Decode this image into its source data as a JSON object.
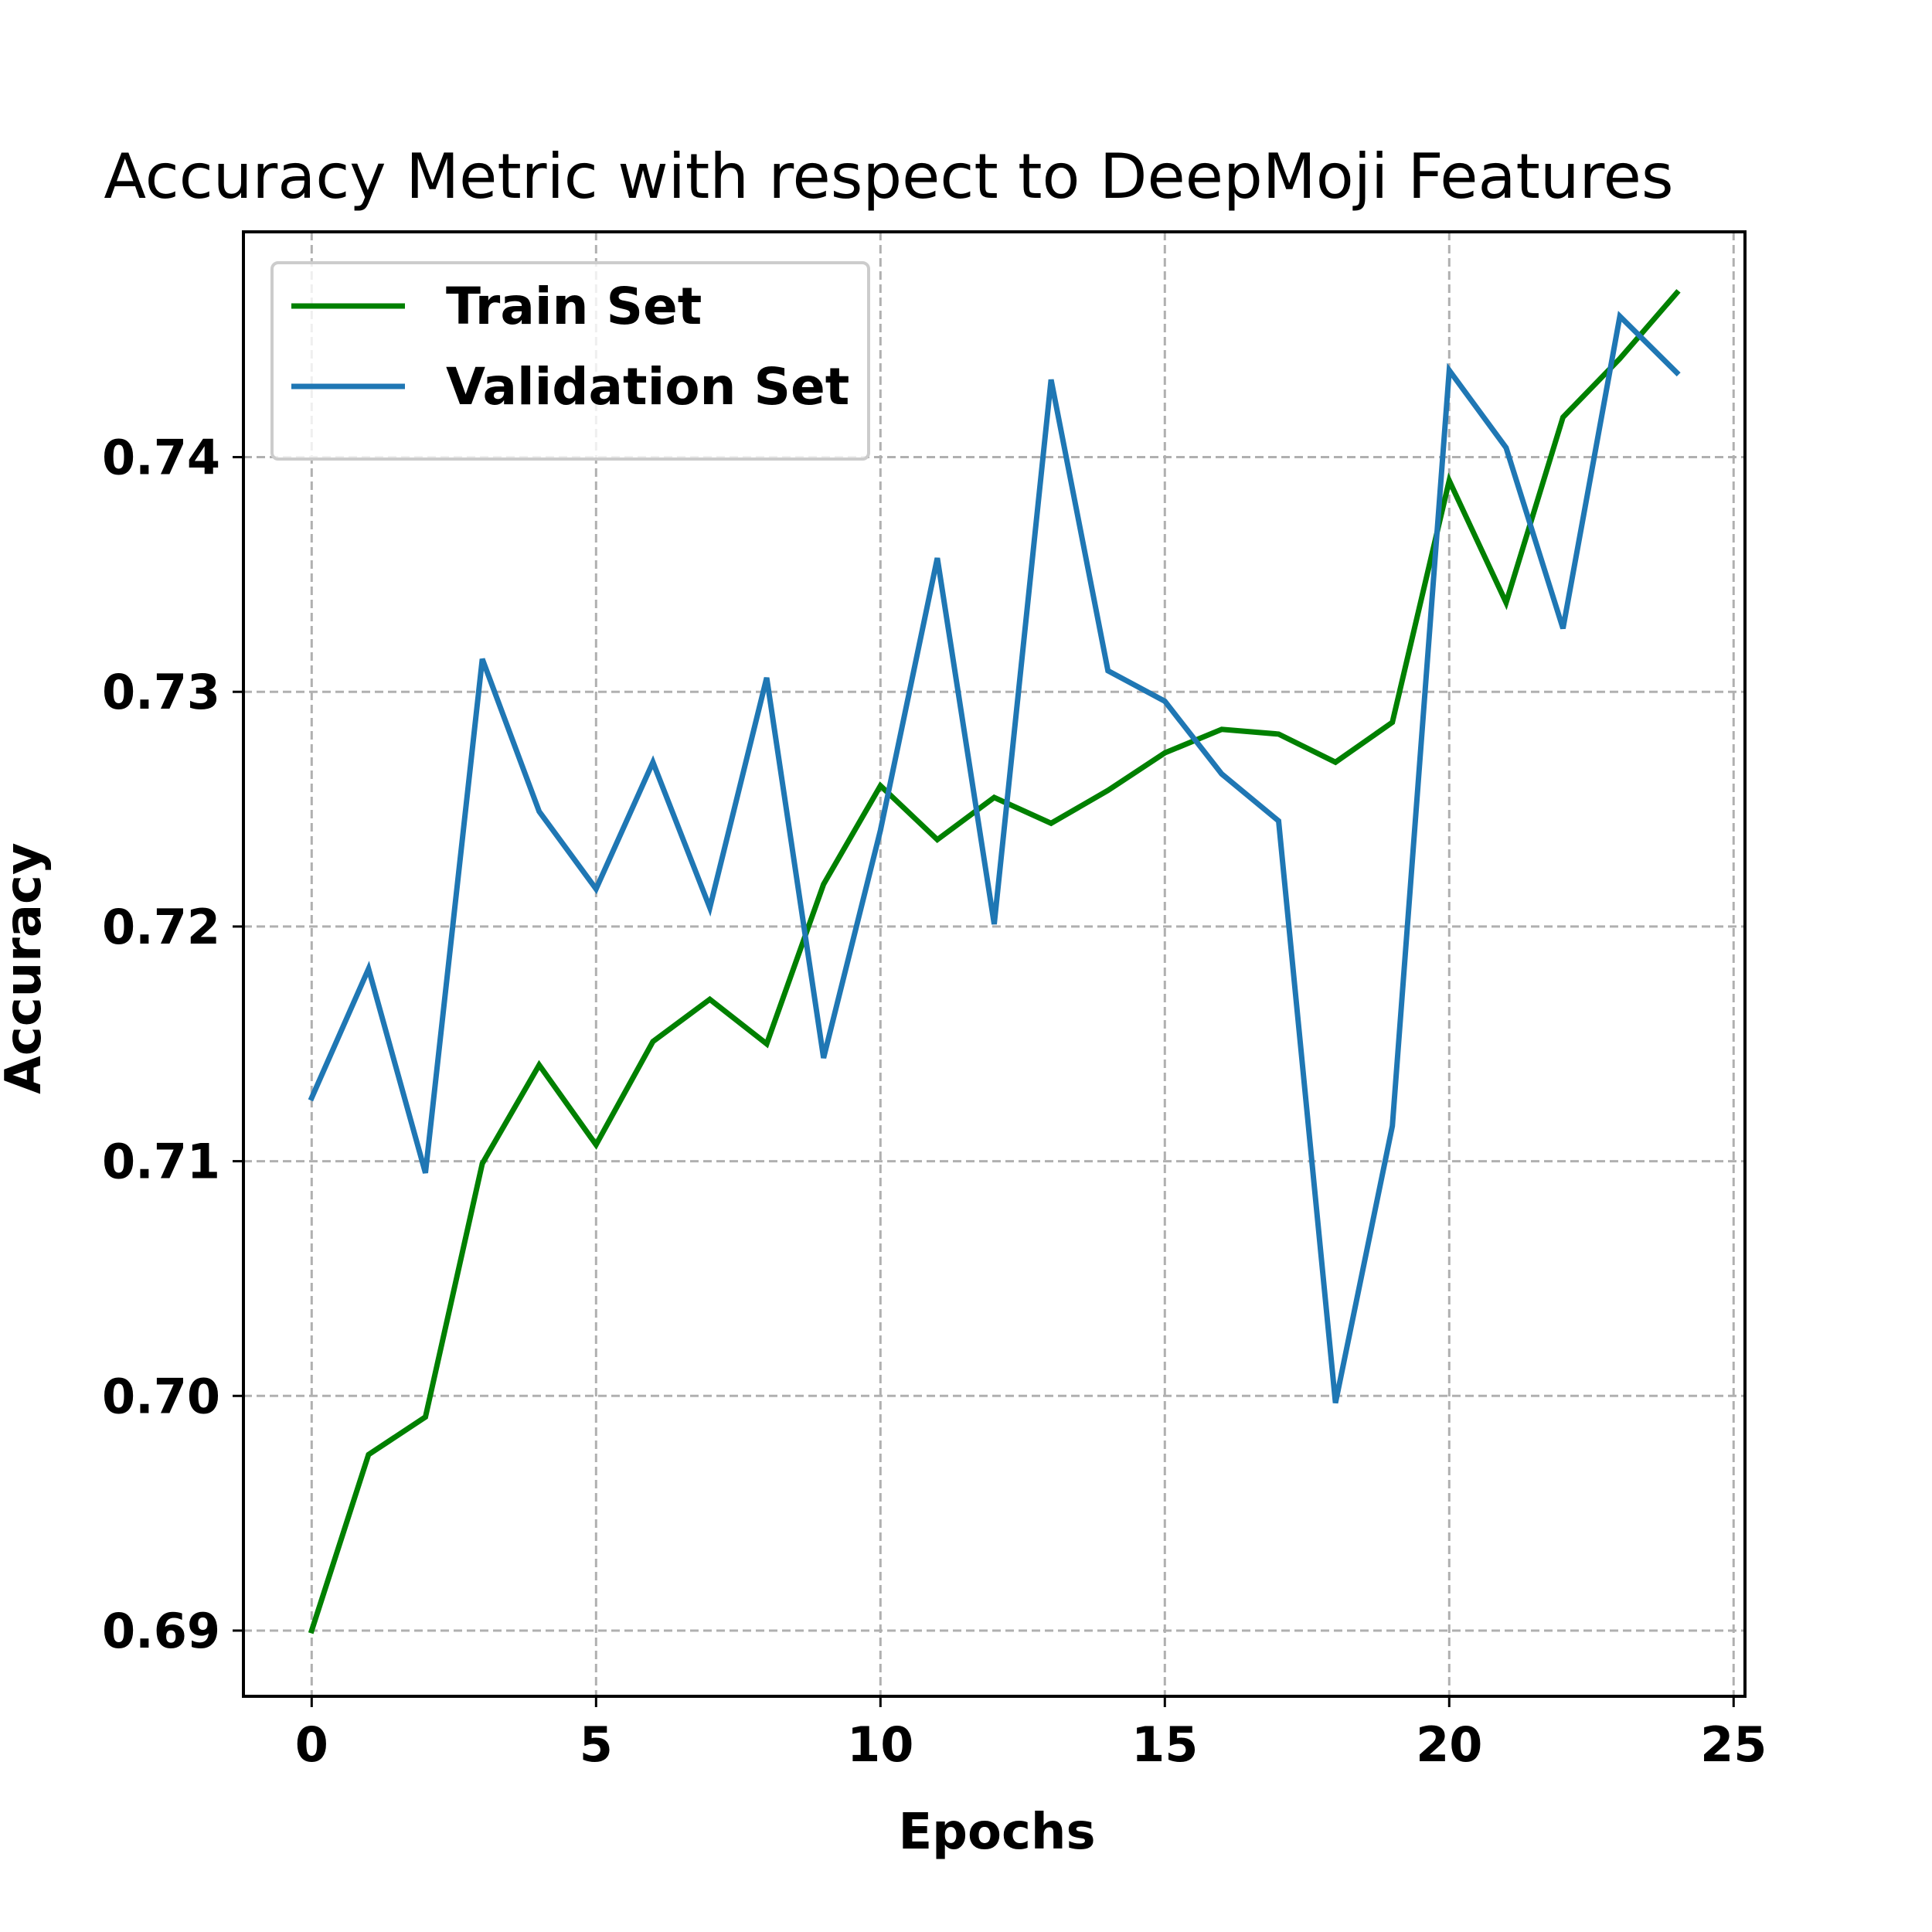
{
  "chart_data": {
    "type": "line",
    "title": "Accuracy Metric with respect to DeepMoji Features",
    "xlabel": "Epochs",
    "ylabel": "Accuracy",
    "xlim": [
      -1.2,
      25.2
    ],
    "ylim": [
      0.6872,
      0.7496
    ],
    "xticks": [
      0,
      5,
      10,
      15,
      20,
      25
    ],
    "xtick_labels": [
      "0",
      "5",
      "10",
      "15",
      "20",
      "25"
    ],
    "yticks": [
      0.69,
      0.7,
      0.71,
      0.72,
      0.73,
      0.74
    ],
    "ytick_labels": [
      "0.69",
      "0.70",
      "0.71",
      "0.72",
      "0.73",
      "0.74"
    ],
    "grid": true,
    "legend_position": "top-left",
    "x": [
      0,
      1,
      2,
      3,
      4,
      5,
      6,
      7,
      8,
      9,
      10,
      11,
      12,
      13,
      14,
      15,
      16,
      17,
      18,
      19,
      20,
      21,
      22,
      23,
      24
    ],
    "series": [
      {
        "name": "Train Set",
        "color": "#008000",
        "values": [
          0.69,
          0.6975,
          0.6991,
          0.7099,
          0.7141,
          0.7107,
          0.7151,
          0.7169,
          0.715,
          0.7218,
          0.726,
          0.7237,
          0.7255,
          0.7244,
          0.7258,
          0.7274,
          0.7284,
          0.7282,
          0.727,
          0.7287,
          0.739,
          0.7338,
          0.7417,
          0.7442,
          0.747
        ]
      },
      {
        "name": "Validation Set",
        "color": "#1f77b4",
        "values": [
          0.7127,
          0.7182,
          0.7095,
          0.7314,
          0.7249,
          0.7216,
          0.727,
          0.7208,
          0.7306,
          0.7144,
          0.7241,
          0.7357,
          0.7201,
          0.7433,
          0.7309,
          0.7296,
          0.7265,
          0.7245,
          0.6997,
          0.7115,
          0.7437,
          0.7404,
          0.7327,
          0.746,
          0.7436
        ]
      }
    ]
  }
}
